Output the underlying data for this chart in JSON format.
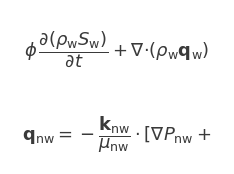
{
  "eq1": "$\\phi \\dfrac{\\partial(\\rho_{\\mathrm{w}}S_{\\mathrm{w}})}{\\partial t} + \\nabla{\\cdot}(\\rho_{\\mathrm{w}}\\mathbf{q}_{\\mathrm{w}})$",
  "eq2": "$\\mathbf{q}_{\\mathrm{nw}} = -\\dfrac{\\mathbf{k}_{\\mathrm{nw}}}{\\mu_{\\mathrm{nw}}}[\\nabla P_{\\mathrm{nw}} +$",
  "bg_color": "#ffffff",
  "text_color": "#3a3a3a",
  "fontsize1": 13,
  "fontsize2": 13,
  "fig_width": 2.34,
  "fig_height": 1.74,
  "dpi": 100
}
